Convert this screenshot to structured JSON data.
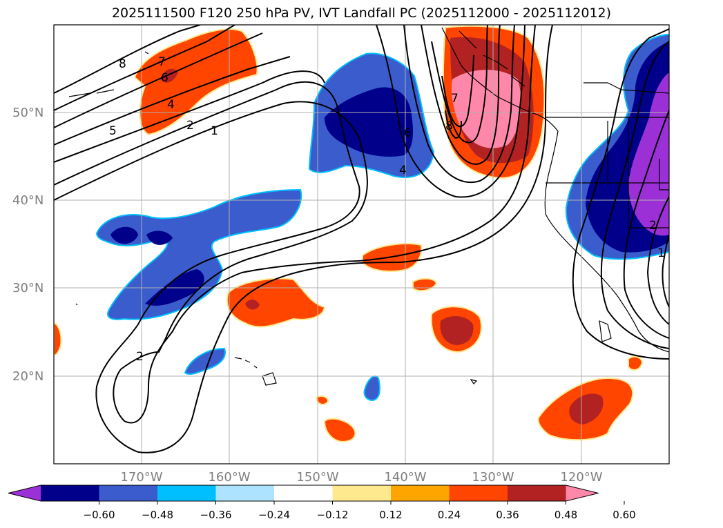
{
  "title": "2025111500 F120 250 hPa PV, IVT Landfall PC (2025112000 - 2025112012)",
  "lat_labels": [
    "50°N",
    "40°N",
    "30°N",
    "20°N"
  ],
  "lon_labels": [
    "170°W",
    "160°W",
    "150°W",
    "140°W",
    "130°W",
    "120°W"
  ],
  "contour_labels": [
    "8",
    "7",
    "6",
    "5",
    "4",
    "2",
    "1",
    "2",
    "8",
    "7",
    "6",
    "4",
    "2",
    "1"
  ],
  "colorbar": {
    "ticks": [
      "-0.60",
      "-0.48",
      "-0.36",
      "-0.24",
      "-0.12",
      "0.12",
      "0.24",
      "0.36",
      "0.48",
      "0.60"
    ],
    "colors": [
      "#9b30d6",
      "#00008b",
      "#3a5ccc",
      "#00bfff",
      "#ade3ff",
      "#ffffff",
      "#ffe98f",
      "#ffa500",
      "#ff4500",
      "#b22222",
      "#ff88aa"
    ]
  },
  "colors": {
    "pos_fill": "#ff4500",
    "pos_strong": "#b22222",
    "pos_max": "#ff88aa",
    "pos_edge": "#ffe98f",
    "neg_fill": "#3a5ccc",
    "neg_strong": "#00008b",
    "neg_max": "#9b30d6",
    "neg_edge": "#00bfff"
  }
}
